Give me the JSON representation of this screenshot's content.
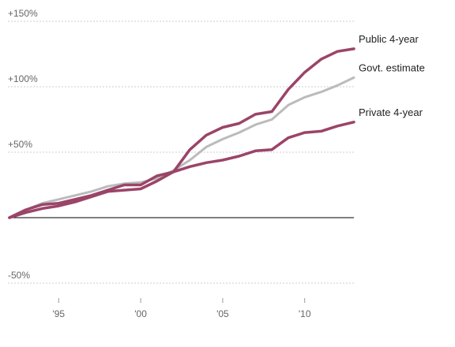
{
  "chart_data": {
    "type": "line",
    "title": "",
    "xlabel": "",
    "ylabel": "",
    "x": [
      1992,
      1993,
      1994,
      1995,
      1996,
      1997,
      1998,
      1999,
      2000,
      2001,
      2002,
      2003,
      2004,
      2005,
      2006,
      2007,
      2008,
      2009,
      2010,
      2011,
      2012,
      2013
    ],
    "xlim": [
      1992,
      2013
    ],
    "ylim": [
      -55,
      155
    ],
    "y_ticks": [
      {
        "value": 150,
        "label": "+150%"
      },
      {
        "value": 100,
        "label": "+100%"
      },
      {
        "value": 50,
        "label": "+50%"
      },
      {
        "value": -50,
        "label": "-50%"
      }
    ],
    "x_ticks": [
      {
        "value": 1995,
        "label": "'95"
      },
      {
        "value": 2000,
        "label": "'00"
      },
      {
        "value": 2005,
        "label": "'05"
      },
      {
        "value": 2010,
        "label": "'10"
      }
    ],
    "grid": true,
    "zero_line": true,
    "series": [
      {
        "name": "Govt. estimate",
        "color": "#bbbbbb",
        "values": [
          0,
          6,
          11,
          14,
          17,
          20,
          24,
          26,
          27,
          30,
          36,
          44,
          54,
          60,
          65,
          71,
          75,
          86,
          92,
          96,
          101,
          107
        ]
      },
      {
        "name": "Private 4-year",
        "color": "#9b4468",
        "values": [
          0,
          4,
          7,
          9,
          12,
          16,
          20,
          21,
          22,
          28,
          35,
          39,
          42,
          44,
          47,
          51,
          52,
          61,
          65,
          66,
          70,
          73
        ]
      },
      {
        "name": "Public 4-year",
        "color": "#9b4468",
        "values": [
          0,
          6,
          10,
          11,
          14,
          17,
          21,
          25,
          25,
          32,
          35,
          52,
          63,
          69,
          72,
          79,
          81,
          98,
          111,
          121,
          127,
          129
        ]
      }
    ],
    "legend": "direct labels at right end of lines"
  }
}
